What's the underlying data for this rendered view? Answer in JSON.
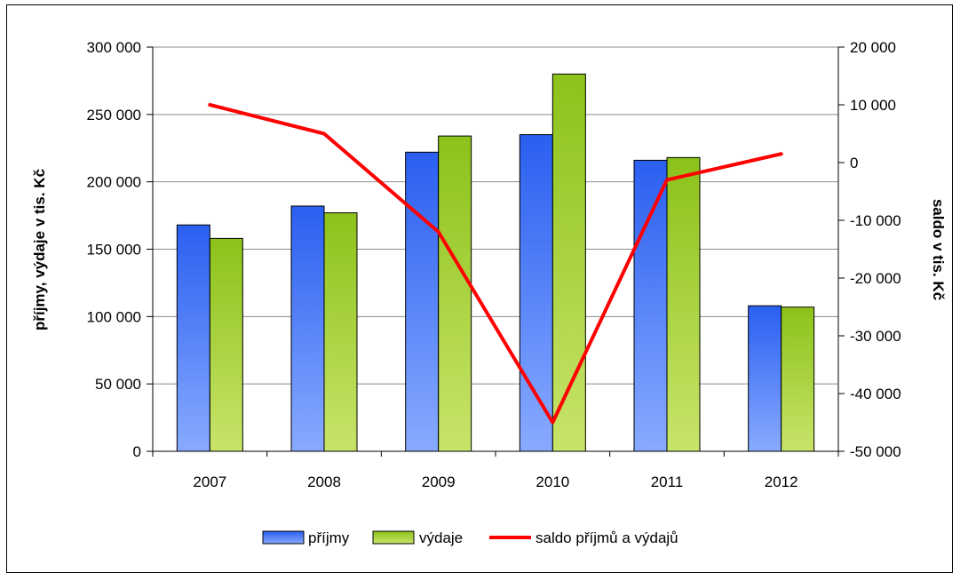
{
  "chart_data": {
    "type": "bar",
    "categories": [
      "2007",
      "2008",
      "2009",
      "2010",
      "2011",
      "2012"
    ],
    "series": [
      {
        "name": "příjmy",
        "type": "bar",
        "axis": "left",
        "color": "#3a6cf0",
        "values": [
          168000,
          182000,
          222000,
          235000,
          216000,
          108000
        ]
      },
      {
        "name": "výdaje",
        "type": "bar",
        "axis": "left",
        "color": "#8ec21f",
        "values": [
          158000,
          177000,
          234000,
          280000,
          218000,
          107000
        ]
      },
      {
        "name": "saldo příjmů a výdajů",
        "type": "line",
        "axis": "right",
        "color": "#ff0000",
        "values": [
          10000,
          5000,
          -12000,
          -45000,
          -3000,
          1500
        ]
      }
    ],
    "ylabel": "příjmy, výdaje v tis. Kč",
    "y2label": "saldo v tis. Kč",
    "ylim": [
      0,
      300000
    ],
    "y2lim": [
      -50000,
      20000
    ],
    "yticks": [
      "0",
      "50 000",
      "100 000",
      "150 000",
      "200 000",
      "250 000",
      "300 000"
    ],
    "y2ticks": [
      "-50 000",
      "-40 000",
      "-30 000",
      "-20 000",
      "-10 000",
      "0",
      "10 000",
      "20 000"
    ],
    "grid": true,
    "legend": "bottom"
  }
}
